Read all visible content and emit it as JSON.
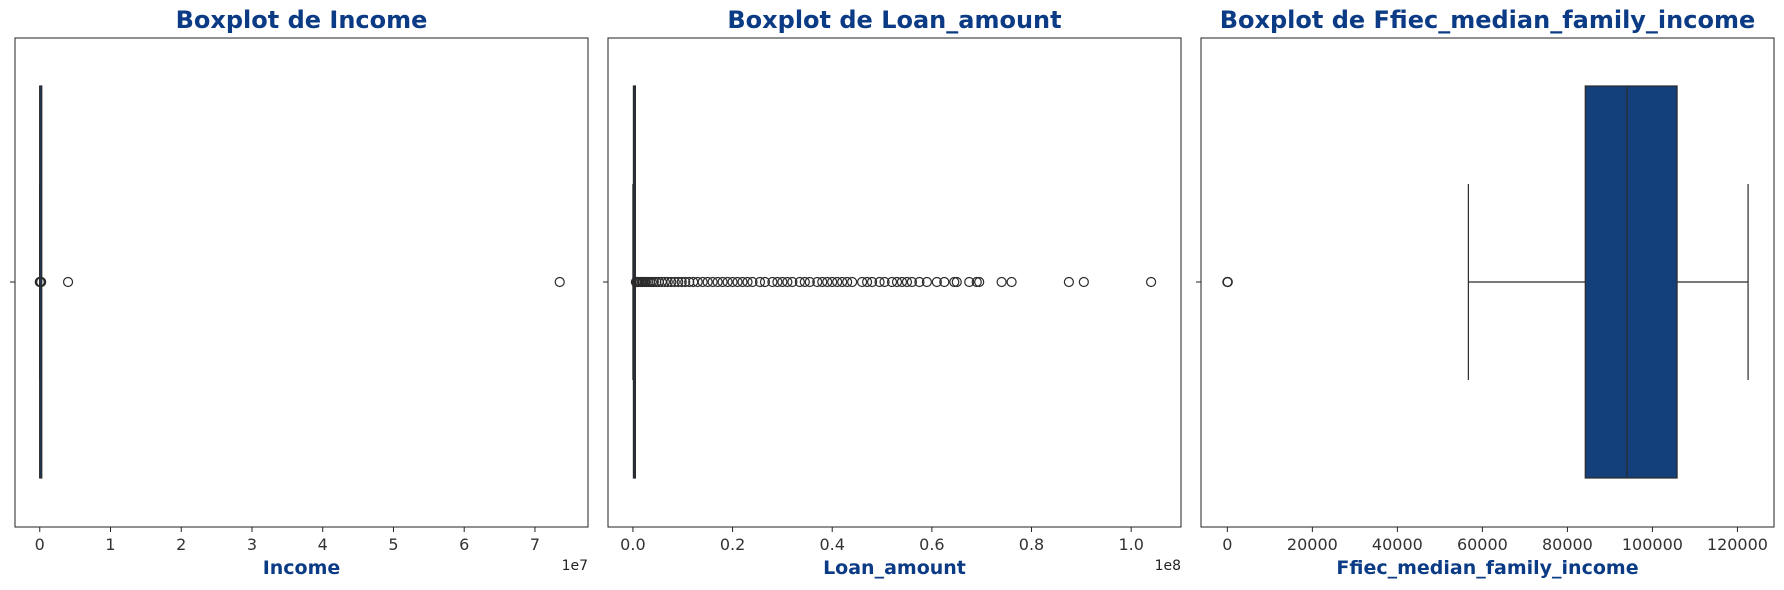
{
  "colors": {
    "title": "#0c3b85",
    "box_fill": "#133f7a",
    "line": "#2b2b2b",
    "frame": "#222222"
  },
  "chart_data": [
    {
      "type": "boxplot",
      "orientation": "horizontal",
      "title": "Boxplot de Income",
      "xlabel": "Income",
      "offset_text": "1e7",
      "xlim": [
        -0.35,
        7.75
      ],
      "xticks": [
        0,
        1,
        2,
        3,
        4,
        5,
        6,
        7
      ],
      "tick_labels": [
        "0",
        "1",
        "2",
        "3",
        "4",
        "5",
        "6",
        "7"
      ],
      "box": {
        "whisker_low": 0,
        "q1": 0,
        "median": 0,
        "q3": 0,
        "whisker_high": 0
      },
      "outliers": [
        0,
        0.01,
        0.02,
        0.4,
        7.35
      ]
    },
    {
      "type": "boxplot",
      "orientation": "horizontal",
      "title": "Boxplot de Loan_amount",
      "xlabel": "Loan_amount",
      "offset_text": "1e8",
      "xlim": [
        -0.05,
        1.1
      ],
      "xticks": [
        0.0,
        0.2,
        0.4,
        0.6,
        0.8,
        1.0
      ],
      "tick_labels": [
        "0.0",
        "0.2",
        "0.4",
        "0.6",
        "0.8",
        "1.0"
      ],
      "box": {
        "whisker_low": 0,
        "q1": 0.001,
        "median": 0.002,
        "q3": 0.003,
        "whisker_high": 0.005
      },
      "outliers": [
        0.006,
        0.008,
        0.01,
        0.012,
        0.015,
        0.018,
        0.02,
        0.023,
        0.026,
        0.03,
        0.034,
        0.038,
        0.042,
        0.047,
        0.052,
        0.058,
        0.064,
        0.07,
        0.077,
        0.084,
        0.091,
        0.098,
        0.105,
        0.113,
        0.121,
        0.13,
        0.14,
        0.15,
        0.16,
        0.17,
        0.18,
        0.19,
        0.2,
        0.21,
        0.22,
        0.23,
        0.24,
        0.255,
        0.265,
        0.28,
        0.29,
        0.3,
        0.31,
        0.32,
        0.335,
        0.345,
        0.355,
        0.37,
        0.38,
        0.39,
        0.4,
        0.41,
        0.42,
        0.43,
        0.44,
        0.46,
        0.47,
        0.48,
        0.495,
        0.505,
        0.52,
        0.53,
        0.54,
        0.55,
        0.56,
        0.575,
        0.59,
        0.61,
        0.625,
        0.645,
        0.65,
        0.675,
        0.69,
        0.695,
        0.74,
        0.76,
        0.875,
        0.905,
        1.04
      ]
    },
    {
      "type": "boxplot",
      "orientation": "horizontal",
      "title": "Boxplot de Ffiec_median_family_income",
      "xlabel": "Ffiec_median_family_income",
      "offset_text": "",
      "xlim": [
        -6200,
        128600
      ],
      "xticks": [
        0,
        20000,
        40000,
        60000,
        80000,
        100000,
        120000
      ],
      "tick_labels": [
        "0",
        "20000",
        "40000",
        "60000",
        "80000",
        "100000",
        "120000"
      ],
      "box": {
        "whisker_low": 56700,
        "q1": 84200,
        "median": 94000,
        "q3": 105800,
        "whisker_high": 122500
      },
      "outliers": [
        0,
        50,
        100
      ]
    }
  ]
}
